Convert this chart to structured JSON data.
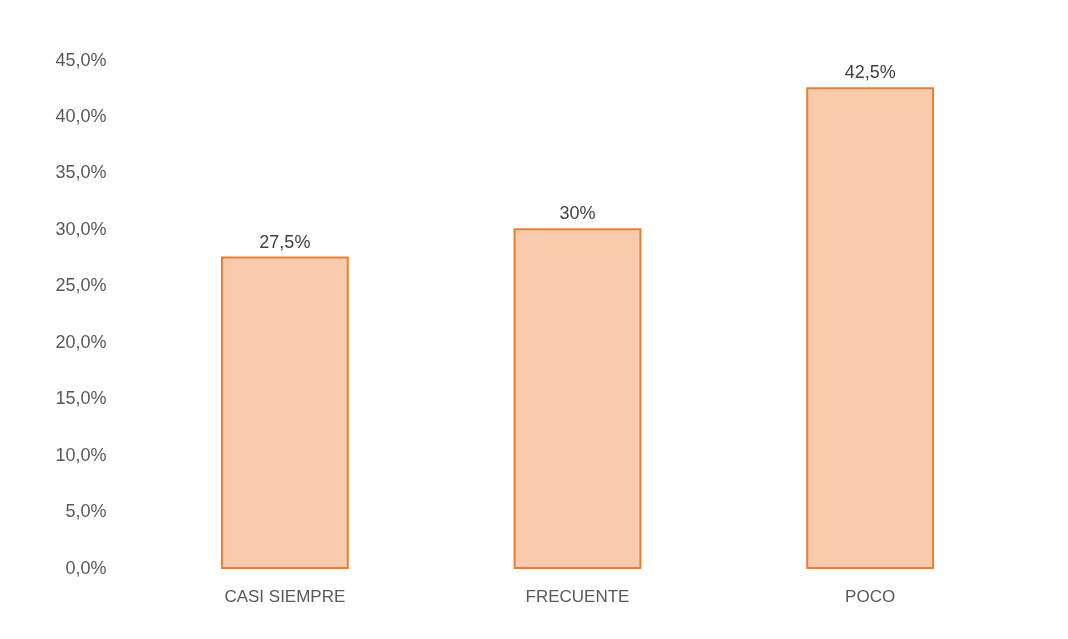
{
  "chart_data": {
    "type": "bar",
    "categories": [
      "CASI SIEMPRE",
      "FRECUENTE",
      "POCO"
    ],
    "values": [
      27.5,
      30,
      42.5
    ],
    "value_labels": [
      "27,5%",
      "30%",
      "42,5%"
    ],
    "color": "#f8cbad",
    "ylim": [
      0,
      45
    ],
    "yticks": [
      {
        "value": 0,
        "label": "0,0%"
      },
      {
        "value": 5,
        "label": "5,0%"
      },
      {
        "value": 10,
        "label": "10,0%"
      },
      {
        "value": 15,
        "label": "15,0%"
      },
      {
        "value": 20,
        "label": "20,0%"
      },
      {
        "value": 25,
        "label": "25,0%"
      },
      {
        "value": 30,
        "label": "30,0%"
      },
      {
        "value": 35,
        "label": "35,0%"
      },
      {
        "value": 40,
        "label": "40,0%"
      },
      {
        "value": 45,
        "label": "45,0%"
      }
    ]
  }
}
